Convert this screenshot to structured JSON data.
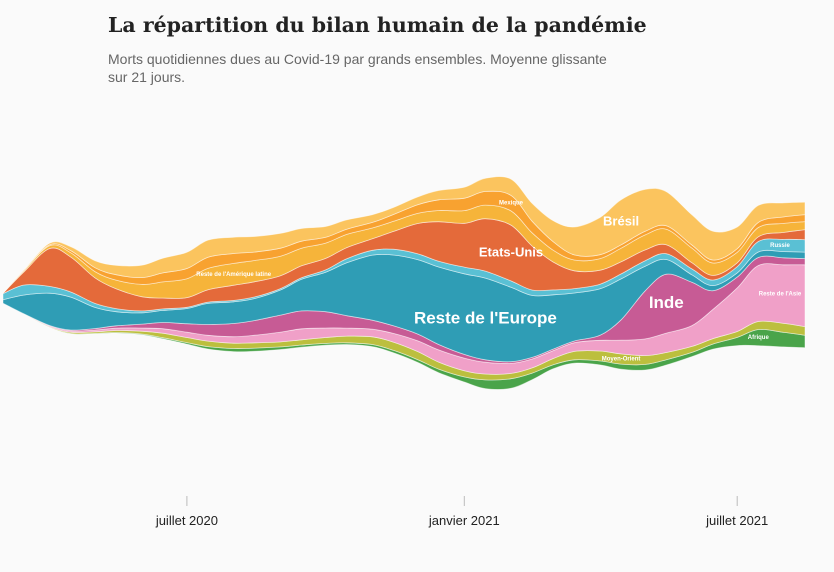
{
  "title": "La répartition du bilan humain de la pandémie",
  "subtitle": "Morts quotidiennes dues au Covid-19 par grands ensembles. Moyenne glissante sur 21 jours.",
  "chart_data": {
    "type": "area",
    "layout": "streamgraph",
    "unit": "morts quotidiennes (moyenne glissante 21 jours)",
    "x": [
      "2020-03-01",
      "2020-03-15",
      "2020-04-01",
      "2020-04-15",
      "2020-05-01",
      "2020-05-15",
      "2020-06-01",
      "2020-06-15",
      "2020-07-01",
      "2020-07-15",
      "2020-08-01",
      "2020-08-15",
      "2020-09-01",
      "2020-09-15",
      "2020-10-01",
      "2020-10-15",
      "2020-11-01",
      "2020-11-15",
      "2020-12-01",
      "2020-12-15",
      "2021-01-01",
      "2021-01-15",
      "2021-02-01",
      "2021-02-15",
      "2021-03-01",
      "2021-03-15",
      "2021-04-01",
      "2021-04-15",
      "2021-05-01",
      "2021-05-15",
      "2021-06-01",
      "2021-06-15",
      "2021-07-01",
      "2021-07-15",
      "2021-08-01",
      "2021-08-15"
    ],
    "x_ticks": [
      {
        "date": "2020-07-01",
        "label": "juillet 2020"
      },
      {
        "date": "2021-01-01",
        "label": "janvier 2021"
      },
      {
        "date": "2021-07-01",
        "label": "juillet 2021"
      }
    ],
    "series": [
      {
        "name": "Afrique",
        "color": "#4aa44a",
        "values": [
          0,
          2,
          10,
          20,
          25,
          35,
          50,
          70,
          100,
          160,
          200,
          210,
          170,
          140,
          120,
          110,
          130,
          160,
          180,
          230,
          330,
          560,
          620,
          430,
          260,
          220,
          260,
          330,
          360,
          340,
          270,
          330,
          530,
          1040,
          940,
          800
        ]
      },
      {
        "name": "Moyen-Orient",
        "color": "#bcbf3e",
        "values": [
          0,
          10,
          40,
          80,
          100,
          130,
          180,
          290,
          330,
          350,
          340,
          340,
          320,
          340,
          380,
          430,
          500,
          530,
          520,
          450,
          400,
          380,
          340,
          330,
          400,
          540,
          640,
          660,
          570,
          470,
          390,
          350,
          380,
          520,
          580,
          560
        ]
      },
      {
        "name": "Reste de l'Asie",
        "color": "#f0a0c8",
        "values": [
          2,
          15,
          55,
          85,
          115,
          150,
          205,
          290,
          340,
          375,
          420,
          490,
          630,
          710,
          610,
          520,
          490,
          560,
          690,
          790,
          810,
          760,
          650,
          580,
          510,
          560,
          690,
          880,
          1080,
          1250,
          1340,
          1890,
          2810,
          3610,
          3780,
          3990
        ]
      },
      {
        "name": "Inde",
        "color": "#c75b95",
        "values": [
          0,
          3,
          20,
          60,
          100,
          150,
          250,
          400,
          550,
          700,
          850,
          950,
          1100,
          1150,
          1050,
          800,
          580,
          490,
          440,
          350,
          240,
          160,
          110,
          100,
          100,
          110,
          320,
          1320,
          3100,
          3800,
          2800,
          1200,
          700,
          520,
          450,
          400
        ]
      },
      {
        "name": "Reste de l'Europe",
        "color": "#2f9db5",
        "values": [
          220,
          1220,
          2080,
          2120,
          1360,
          910,
          730,
          780,
          980,
          1360,
          1400,
          1420,
          1620,
          2040,
          2550,
          3410,
          4200,
          4570,
          4800,
          5000,
          5200,
          5270,
          4800,
          4000,
          3500,
          3100,
          3000,
          2640,
          1590,
          950,
          480,
          330,
          270,
          350,
          400,
          420
        ]
      },
      {
        "name": "Russie",
        "color": "#5ac0d4",
        "values": [
          400,
          640,
          440,
          330,
          260,
          200,
          120,
          100,
          80,
          80,
          90,
          100,
          90,
          100,
          150,
          260,
          310,
          370,
          380,
          370,
          430,
          450,
          410,
          350,
          320,
          280,
          300,
          320,
          350,
          370,
          380,
          360,
          400,
          680,
          790,
          800
        ]
      },
      {
        "name": "Etats-Unis",
        "color": "#e46a3a",
        "values": [
          30,
          860,
          2450,
          2250,
          1650,
          1280,
          920,
          700,
          620,
          800,
          980,
          980,
          830,
          770,
          740,
          720,
          740,
          1150,
          1950,
          2550,
          2830,
          3380,
          3600,
          2840,
          1800,
          1150,
          900,
          780,
          700,
          580,
          400,
          300,
          250,
          300,
          450,
          650
        ]
      },
      {
        "name": "Reste de l'Amérique latine",
        "color": "#f6b43a",
        "values": [
          0,
          80,
          180,
          280,
          400,
          560,
          790,
          1040,
          1220,
          1380,
          1410,
          1370,
          1260,
          1140,
          990,
          850,
          700,
          650,
          650,
          720,
          820,
          880,
          920,
          850,
          760,
          700,
          750,
          880,
          970,
          1000,
          940,
          800,
          680,
          600,
          580,
          520
        ]
      },
      {
        "name": "Mexique",
        "color": "#f8a230",
        "values": [
          0,
          20,
          60,
          140,
          250,
          350,
          440,
          580,
          660,
          720,
          640,
          550,
          520,
          450,
          370,
          340,
          360,
          440,
          560,
          690,
          800,
          880,
          1000,
          750,
          550,
          330,
          250,
          220,
          230,
          220,
          200,
          190,
          230,
          330,
          420,
          450
        ]
      },
      {
        "name": "Brésil",
        "color": "#fbc45e",
        "values": [
          0,
          20,
          100,
          250,
          450,
          600,
          800,
          950,
          1050,
          1100,
          1050,
          1000,
          950,
          820,
          700,
          600,
          500,
          450,
          500,
          600,
          700,
          850,
          1050,
          1150,
          1350,
          1800,
          2400,
          2900,
          2700,
          2200,
          1950,
          1850,
          1400,
          1100,
          900,
          800
        ]
      }
    ],
    "labels": [
      {
        "text": "Brésil",
        "series": "Brésil",
        "size": "medium"
      },
      {
        "text": "Mexique",
        "series": "Mexique",
        "size": "tiny"
      },
      {
        "text": "Reste de l'Amérique latine",
        "series": "Reste de l'Amérique latine",
        "size": "tiny"
      },
      {
        "text": "Etats-Unis",
        "series": "Etats-Unis",
        "size": "medium"
      },
      {
        "text": "Russie",
        "series": "Russie",
        "size": "tiny"
      },
      {
        "text": "Reste de l'Europe",
        "series": "Reste de l'Europe",
        "size": "large"
      },
      {
        "text": "Inde",
        "series": "Inde",
        "size": "large"
      },
      {
        "text": "Reste de l'Asie",
        "series": "Reste de l'Asie",
        "size": "tiny"
      },
      {
        "text": "Moyen-Orient",
        "series": "Moyen-Orient",
        "size": "tiny"
      },
      {
        "text": "Afrique",
        "series": "Afrique",
        "size": "tiny"
      }
    ],
    "grid": false,
    "legend": "none"
  }
}
